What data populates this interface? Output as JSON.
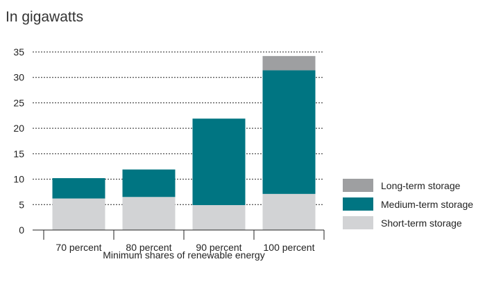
{
  "chart_data": {
    "type": "bar",
    "stacked": true,
    "title": "In gigawatts",
    "xlabel": "Minimum shares of renewable energy",
    "ylabel": "",
    "ylim": [
      0,
      35
    ],
    "yticks": [
      0,
      5,
      10,
      15,
      20,
      25,
      30,
      35
    ],
    "grid": "horizontal-dashed",
    "legend_position": "right",
    "categories": [
      "70 percent",
      "80 percent",
      "90 percent",
      "100 percent"
    ],
    "series": [
      {
        "name": "Short-term storage",
        "color": "#d2d3d5",
        "values": [
          6.2,
          6.5,
          4.9,
          7.1
        ]
      },
      {
        "name": "Medium-term storage",
        "color": "#007582",
        "values": [
          4.0,
          5.4,
          17.0,
          24.3
        ]
      },
      {
        "name": "Long-term storage",
        "color": "#9e9fa1",
        "values": [
          0,
          0,
          0,
          2.8
        ]
      }
    ],
    "legend_order": [
      2,
      1,
      0
    ]
  }
}
